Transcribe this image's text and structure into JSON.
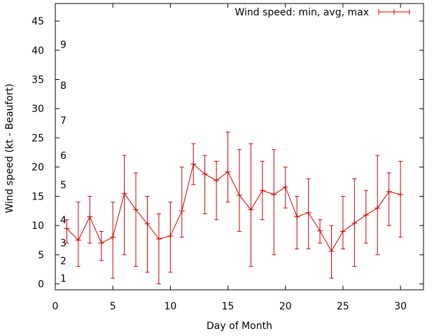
{
  "chart_data": {
    "type": "line",
    "title": "",
    "xlabel": "Day of Month",
    "ylabel": "Wind speed (kt - Beaufort)",
    "xlim": [
      0,
      32
    ],
    "ylim": [
      -1,
      48
    ],
    "x_ticks": [
      0,
      5,
      10,
      15,
      20,
      25,
      30
    ],
    "y_ticks": [
      0,
      5,
      10,
      15,
      20,
      25,
      30,
      35,
      40,
      45
    ],
    "grid": false,
    "legend_position": "top-right",
    "beaufort_scale": [
      {
        "label": "1",
        "y": 1
      },
      {
        "label": "2",
        "y": 4
      },
      {
        "label": "3",
        "y": 7
      },
      {
        "label": "4",
        "y": 11
      },
      {
        "label": "5",
        "y": 17
      },
      {
        "label": "6",
        "y": 22
      },
      {
        "label": "7",
        "y": 28
      },
      {
        "label": "8",
        "y": 34
      },
      {
        "label": "9",
        "y": 41
      }
    ],
    "series": [
      {
        "name": "Wind speed: min, avg, max",
        "color": "#cc0000",
        "x": [
          1,
          2,
          3,
          4,
          5,
          6,
          7,
          8,
          9,
          10,
          11,
          12,
          13,
          14,
          15,
          16,
          17,
          18,
          19,
          20,
          21,
          22,
          23,
          24,
          25,
          26,
          27,
          28,
          29,
          30
        ],
        "avg": [
          9.5,
          7.5,
          11.5,
          7,
          8,
          15.5,
          12.7,
          10.3,
          7.7,
          8.2,
          12.5,
          20.5,
          18.8,
          17.7,
          19.2,
          15.2,
          12.7,
          16,
          15.3,
          16.6,
          11.5,
          12.2,
          9.1,
          5.6,
          9,
          10.4,
          11.8,
          13,
          15.8,
          15.3
        ],
        "min": [
          7,
          3,
          7,
          4,
          1,
          5,
          3,
          2,
          0,
          2,
          8,
          17,
          12,
          11,
          14,
          9,
          3,
          11,
          5,
          13,
          6,
          6,
          7,
          1,
          6,
          3,
          7,
          5,
          10,
          8
        ],
        "max": [
          11,
          14,
          15,
          9,
          14,
          22,
          19,
          15,
          12,
          14,
          20,
          24,
          22,
          21,
          26,
          23,
          24,
          21,
          23,
          20,
          15,
          18,
          11,
          10,
          15,
          18,
          16,
          22,
          19,
          21
        ]
      }
    ]
  }
}
